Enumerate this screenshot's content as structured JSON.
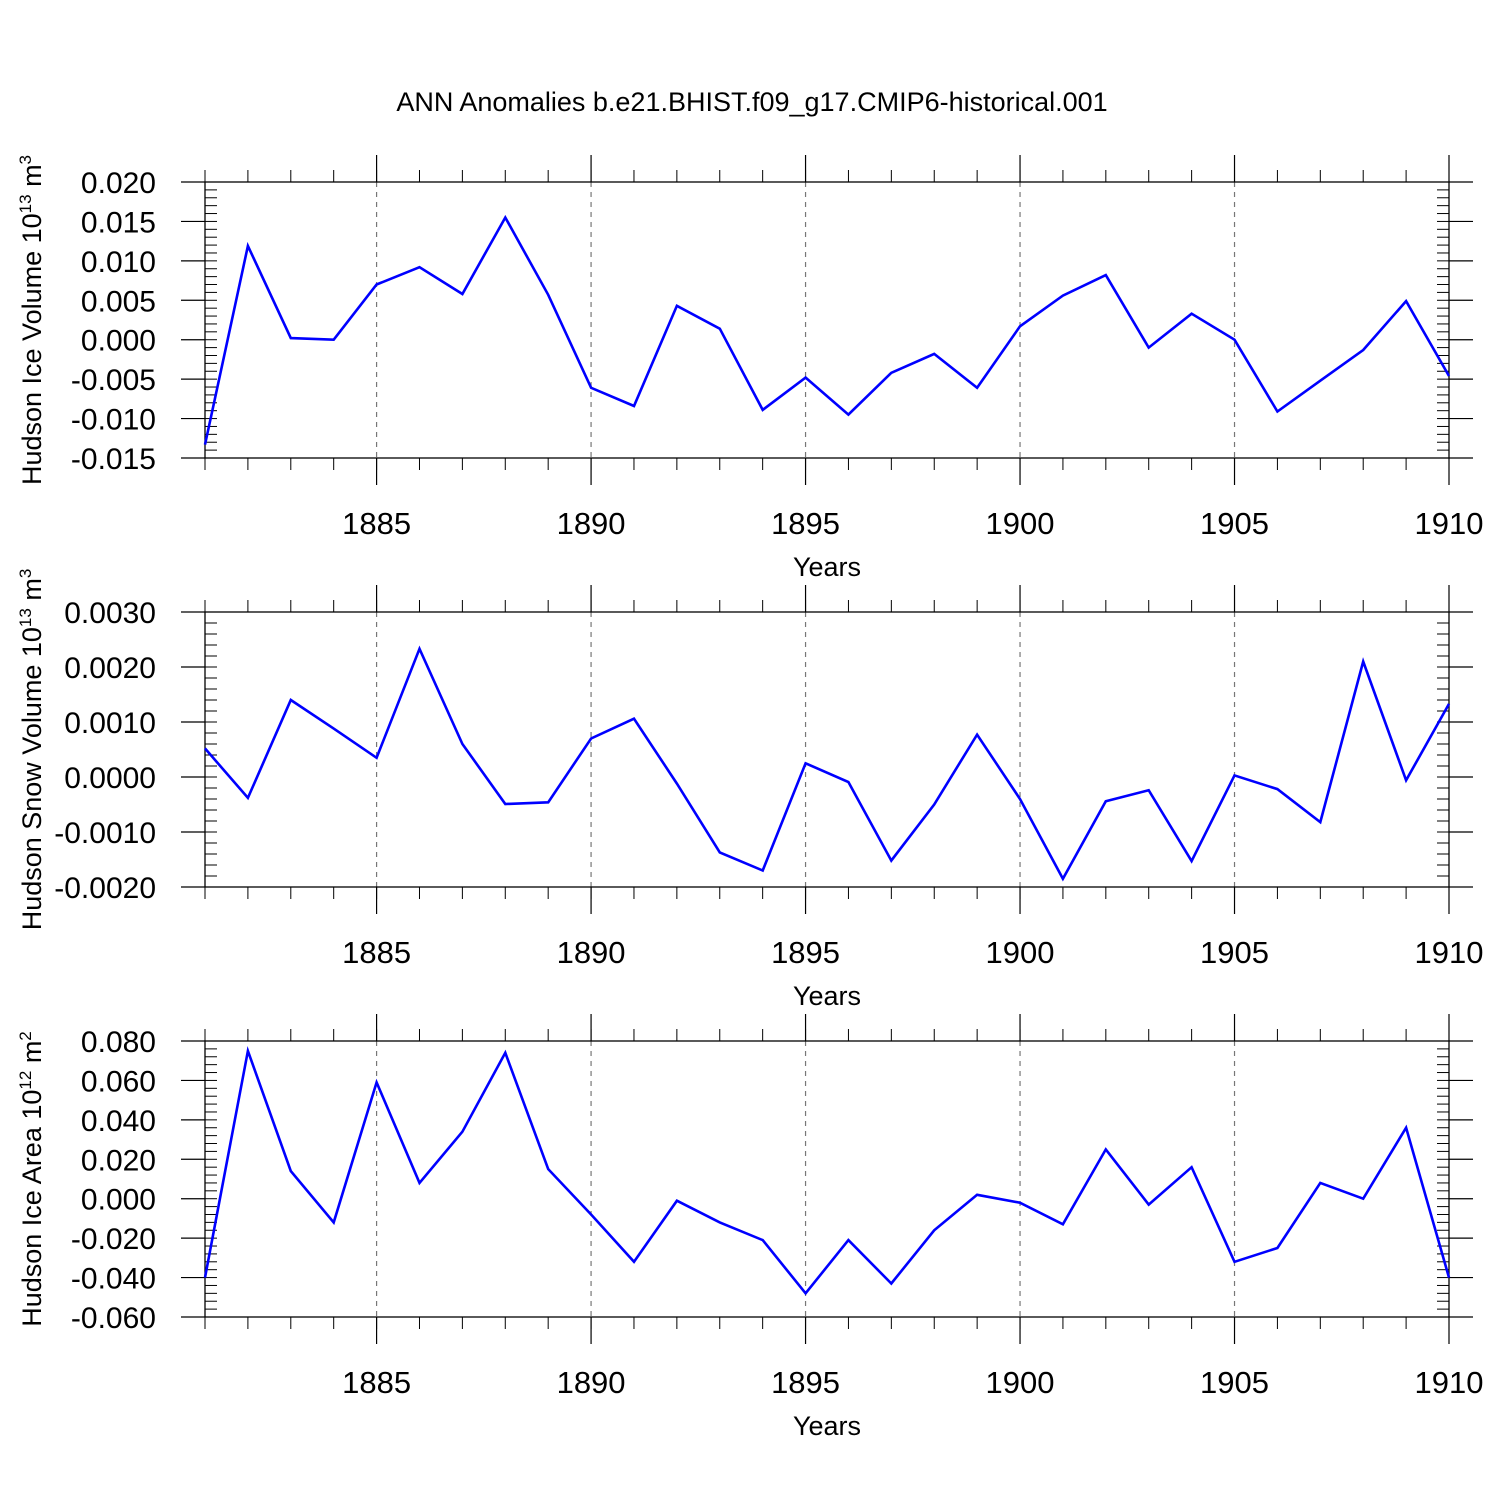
{
  "figure": {
    "title": "ANN Anomalies b.e21.BHIST.f09_g17.CMIP6-historical.001",
    "line_color": "#0000ff"
  },
  "chart_data": [
    {
      "type": "line",
      "series": [
        {
          "name": "Hudson Ice Volume",
          "x": [
            1881,
            1882,
            1883,
            1884,
            1885,
            1886,
            1887,
            1888,
            1889,
            1890,
            1891,
            1892,
            1893,
            1894,
            1895,
            1896,
            1897,
            1898,
            1899,
            1900,
            1901,
            1902,
            1903,
            1904,
            1905,
            1906,
            1907,
            1908,
            1909,
            1910
          ],
          "values": [
            -0.0133,
            0.0119,
            0.0002,
            0.0,
            0.007,
            0.0092,
            0.0058,
            0.0155,
            0.0057,
            -0.0061,
            -0.0084,
            0.0043,
            0.0014,
            -0.0089,
            -0.0048,
            -0.0095,
            -0.0042,
            -0.0018,
            -0.0061,
            0.0017,
            0.0056,
            0.0082,
            -0.001,
            0.0033,
            0.0,
            -0.0091,
            -0.0052,
            -0.0013,
            0.0049,
            -0.0046
          ]
        }
      ],
      "ylabel": "Hudson Ice Volume 10",
      "ylabel_exp": "13",
      "ylabel_unit": "m",
      "ylabel_unit_exp": "3",
      "xlabel": "Years",
      "ylim": [
        -0.015,
        0.02
      ],
      "yticks": [
        -0.015,
        -0.01,
        -0.005,
        0.0,
        0.005,
        0.01,
        0.015,
        0.02
      ],
      "ytick_labels": [
        "-0.015",
        "-0.010",
        "-0.005",
        "0.000",
        "0.005",
        "0.010",
        "0.015",
        "0.020"
      ],
      "xlim": [
        1881,
        1910
      ],
      "xticks": [
        1885,
        1890,
        1895,
        1900,
        1905,
        1910
      ],
      "xtick_labels": [
        "1885",
        "1890",
        "1895",
        "1900",
        "1905",
        "1910"
      ],
      "y_decimals": 3
    },
    {
      "type": "line",
      "series": [
        {
          "name": "Hudson Snow Volume",
          "x": [
            1881,
            1882,
            1883,
            1884,
            1885,
            1886,
            1887,
            1888,
            1889,
            1890,
            1891,
            1892,
            1893,
            1894,
            1895,
            1896,
            1897,
            1898,
            1899,
            1900,
            1901,
            1902,
            1903,
            1904,
            1905,
            1906,
            1907,
            1908,
            1909,
            1910
          ],
          "values": [
            0.00052,
            -0.00038,
            0.0014,
            0.00088,
            0.00035,
            0.00233,
            0.0006,
            -0.00049,
            -0.00046,
            0.0007,
            0.00106,
            -0.00012,
            -0.00137,
            -0.0017,
            0.00025,
            -9e-05,
            -0.00152,
            -0.0005,
            0.00077,
            -0.0004,
            -0.00185,
            -0.00044,
            -0.00024,
            -0.00153,
            3e-05,
            -0.00022,
            -0.00082,
            0.0021,
            -6e-05,
            0.00133
          ]
        }
      ],
      "ylabel": "Hudson Snow Volume 10",
      "ylabel_exp": "13",
      "ylabel_unit": "m",
      "ylabel_unit_exp": "3",
      "xlabel": "Years",
      "ylim": [
        -0.002,
        0.003
      ],
      "yticks": [
        -0.002,
        -0.001,
        0.0,
        0.001,
        0.002,
        0.003
      ],
      "ytick_labels": [
        "-0.0020",
        "-0.0010",
        "0.0000",
        "0.0010",
        "0.0020",
        "0.0030"
      ],
      "xlim": [
        1881,
        1910
      ],
      "xticks": [
        1885,
        1890,
        1895,
        1900,
        1905,
        1910
      ],
      "xtick_labels": [
        "1885",
        "1890",
        "1895",
        "1900",
        "1905",
        "1910"
      ],
      "y_decimals": 4
    },
    {
      "type": "line",
      "series": [
        {
          "name": "Hudson Ice Area",
          "x": [
            1881,
            1882,
            1883,
            1884,
            1885,
            1886,
            1887,
            1888,
            1889,
            1890,
            1891,
            1892,
            1893,
            1894,
            1895,
            1896,
            1897,
            1898,
            1899,
            1900,
            1901,
            1902,
            1903,
            1904,
            1905,
            1906,
            1907,
            1908,
            1909,
            1910
          ],
          "values": [
            -0.04,
            0.075,
            0.014,
            -0.012,
            0.059,
            0.008,
            0.034,
            0.074,
            0.015,
            -0.008,
            -0.032,
            -0.001,
            -0.012,
            -0.021,
            -0.048,
            -0.021,
            -0.043,
            -0.016,
            0.002,
            -0.002,
            -0.013,
            0.025,
            -0.003,
            0.016,
            -0.032,
            -0.025,
            0.008,
            0.0,
            0.036,
            -0.04
          ]
        }
      ],
      "ylabel": "Hudson Ice Area 10",
      "ylabel_exp": "12",
      "ylabel_unit": "m",
      "ylabel_unit_exp": "2",
      "xlabel": "Years",
      "ylim": [
        -0.06,
        0.08
      ],
      "yticks": [
        -0.06,
        -0.04,
        -0.02,
        0.0,
        0.02,
        0.04,
        0.06,
        0.08
      ],
      "ytick_labels": [
        "-0.060",
        "-0.040",
        "-0.020",
        "0.000",
        "0.020",
        "0.040",
        "0.060",
        "0.080"
      ],
      "xlim": [
        1881,
        1910
      ],
      "xticks": [
        1885,
        1890,
        1895,
        1900,
        1905,
        1910
      ],
      "xtick_labels": [
        "1885",
        "1890",
        "1895",
        "1900",
        "1905",
        "1910"
      ],
      "y_decimals": 3
    }
  ]
}
